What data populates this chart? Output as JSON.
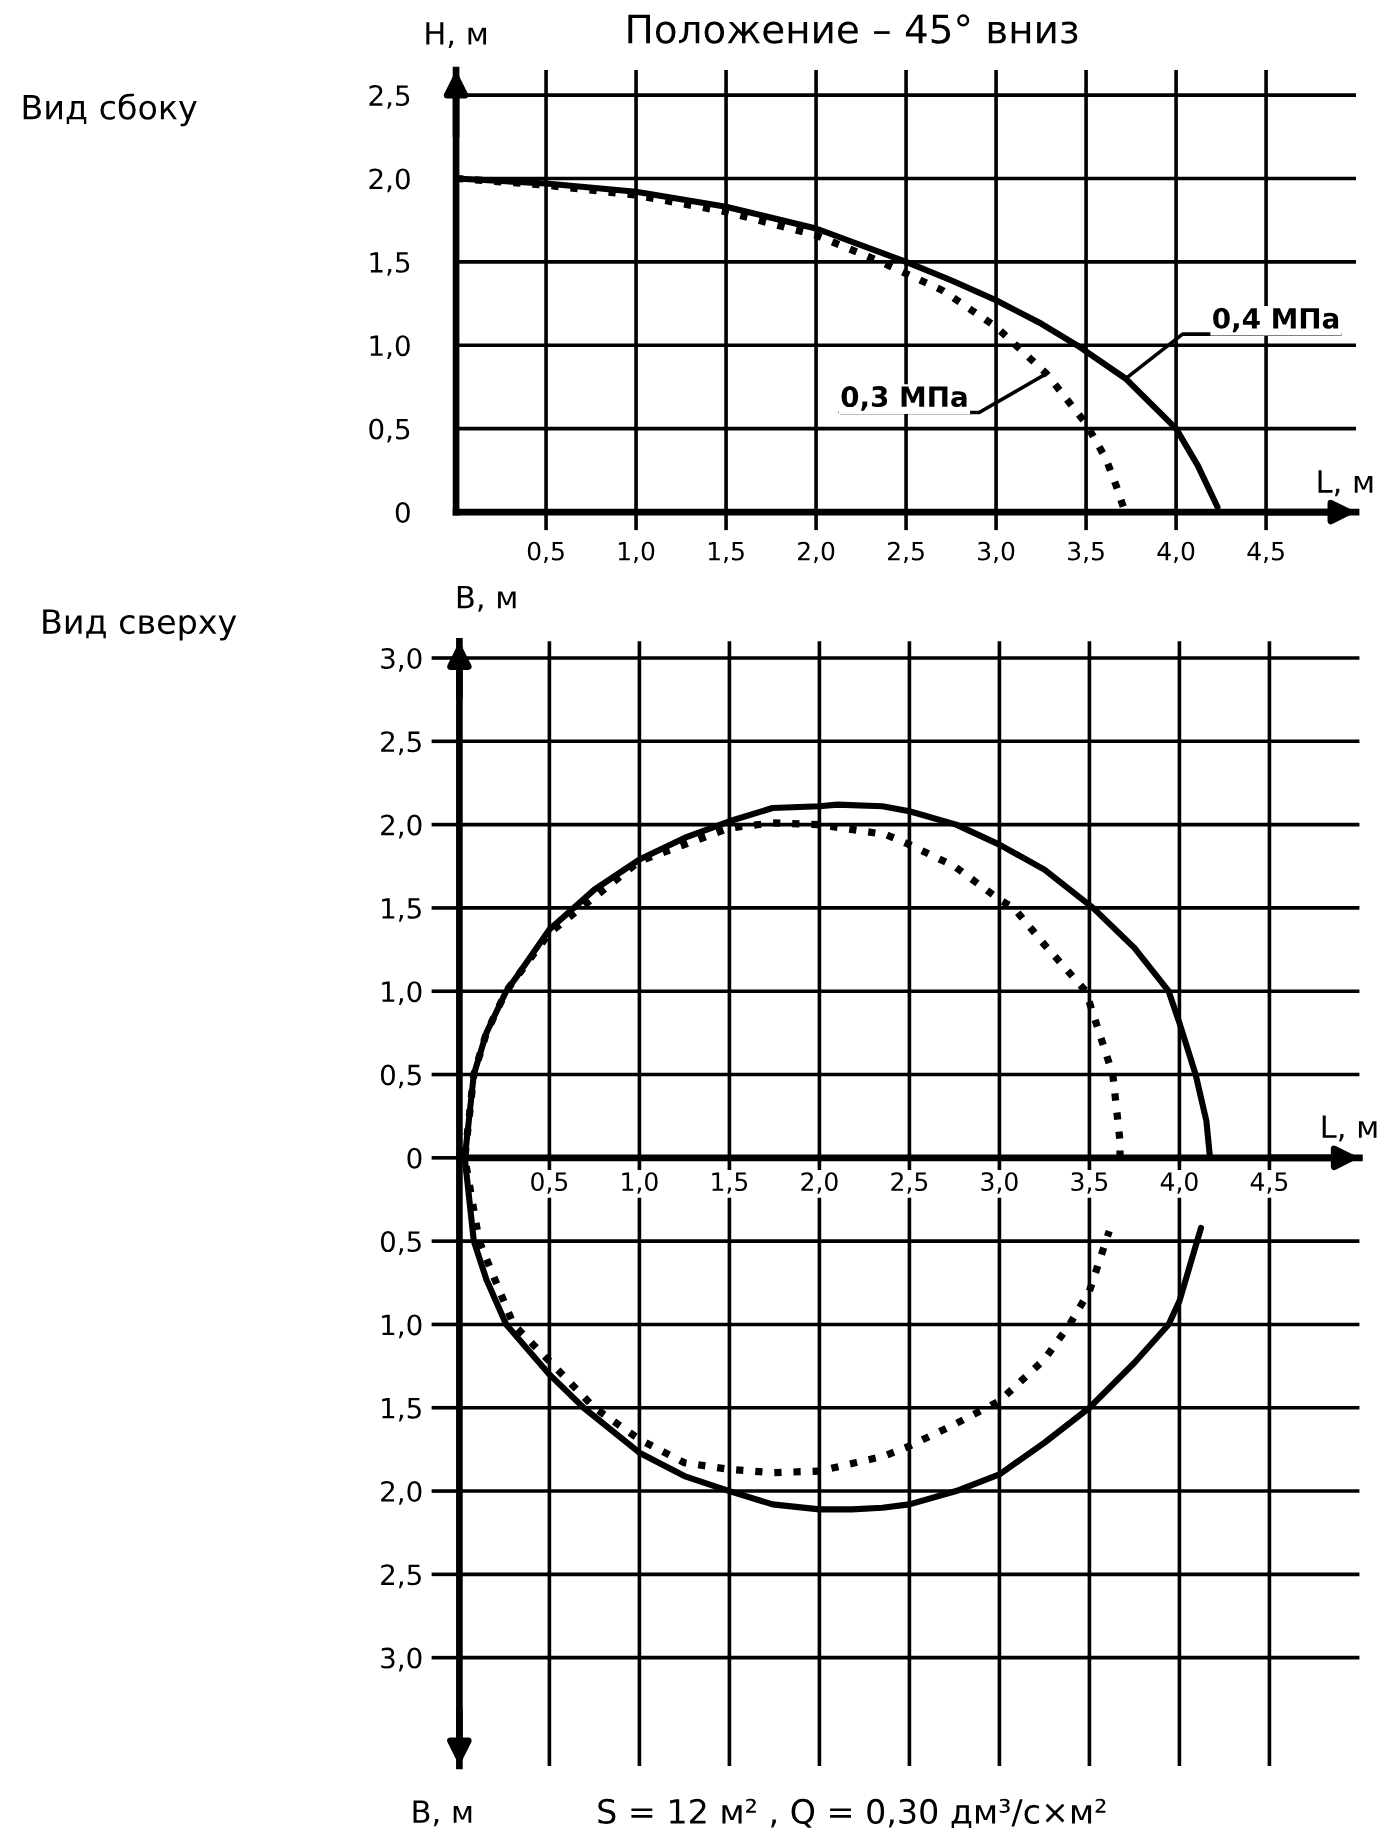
{
  "chart_data": [
    {
      "type": "line",
      "title": "Положение – 45° вниз",
      "subtitle": "Вид сбоку",
      "xlabel": "L, м",
      "ylabel": "H, м",
      "xlim": [
        0,
        5.0
      ],
      "ylim": [
        0,
        2.65
      ],
      "xticks": [
        {
          "value": 0.5,
          "label": "0,5"
        },
        {
          "value": 1.0,
          "label": "1,0"
        },
        {
          "value": 1.5,
          "label": "1,5"
        },
        {
          "value": 2.0,
          "label": "2,0"
        },
        {
          "value": 2.5,
          "label": "2,5"
        },
        {
          "value": 3.0,
          "label": "3,0"
        },
        {
          "value": 3.5,
          "label": "3,5"
        },
        {
          "value": 4.0,
          "label": "4,0"
        },
        {
          "value": 4.5,
          "label": "4,5"
        }
      ],
      "yticks": [
        0,
        {
          "value": 0.5,
          "label": "0,5"
        },
        {
          "value": 1.0,
          "label": "1,0"
        },
        {
          "value": 1.5,
          "label": "1,5"
        },
        {
          "value": 2.0,
          "label": "2,0"
        },
        {
          "value": 2.5,
          "label": "2,5"
        }
      ],
      "grid": true,
      "series": [
        {
          "name": "0,4 МПа",
          "color": "#000000",
          "line_style": "solid",
          "x": [
            0,
            0.5,
            1.0,
            1.5,
            2.0,
            2.5,
            2.75,
            3.0,
            3.25,
            3.45,
            3.72,
            4.0,
            4.12,
            4.23
          ],
          "values": [
            2.0,
            1.97,
            1.92,
            1.83,
            1.7,
            1.5,
            1.39,
            1.27,
            1.13,
            1.0,
            0.8,
            0.5,
            0.28,
            0.03
          ]
        },
        {
          "name": "0,3 МПа",
          "color": "#000000",
          "line_style": "dotted",
          "x": [
            0,
            0.5,
            1.0,
            1.5,
            2.0,
            2.36,
            2.7,
            3.0,
            3.28,
            3.5,
            3.61,
            3.67,
            3.71
          ],
          "values": [
            2.0,
            1.96,
            1.9,
            1.8,
            1.66,
            1.5,
            1.33,
            1.11,
            0.83,
            0.53,
            0.32,
            0.15,
            0.02
          ]
        }
      ]
    },
    {
      "type": "line",
      "title": "Вид сверху",
      "xlabel": "L, м",
      "ylabel": "B, м",
      "annotations": [
        "B, м",
        "S = 12 м² , Q = 0,30 дм³/с×м²"
      ],
      "xlim": [
        0,
        5.0
      ],
      "ylim": [
        -3.65,
        3.1
      ],
      "xticks": [
        {
          "value": 0.5,
          "label": "0,5"
        },
        {
          "value": 1.0,
          "label": "1,0"
        },
        {
          "value": 1.5,
          "label": "1,5"
        },
        {
          "value": 2.0,
          "label": "2,0"
        },
        {
          "value": 2.5,
          "label": "2,5"
        },
        {
          "value": 3.0,
          "label": "3,0"
        },
        {
          "value": 3.5,
          "label": "3,5"
        },
        {
          "value": 4.0,
          "label": "4,0"
        },
        {
          "value": 4.5,
          "label": "4,5"
        }
      ],
      "yticks": [
        {
          "value": -3.0,
          "label": "3,0"
        },
        {
          "value": -2.5,
          "label": "2,5"
        },
        {
          "value": -2.0,
          "label": "2,0"
        },
        {
          "value": -1.5,
          "label": "1,5"
        },
        {
          "value": -1.0,
          "label": "1,0"
        },
        {
          "value": -0.5,
          "label": "0,5"
        },
        0,
        {
          "value": 0.5,
          "label": "0,5"
        },
        {
          "value": 1.0,
          "label": "1,0"
        },
        {
          "value": 1.5,
          "label": "1,5"
        },
        {
          "value": 2.0,
          "label": "2,0"
        },
        {
          "value": 2.5,
          "label": "2,5"
        },
        {
          "value": 3.0,
          "label": "3,0"
        }
      ],
      "grid": true,
      "series": [
        {
          "color": "#000000",
          "line_style": "solid",
          "x": [
            4.17,
            4.15,
            4.09,
            4.0,
            3.94,
            3.75,
            3.52,
            3.25,
            3.0,
            2.76,
            2.5,
            2.35,
            2.1,
            2.0,
            1.74,
            1.5,
            1.25,
            1.0,
            0.75,
            0.5,
            0.32,
            0.26,
            0.15,
            0.08,
            0.03,
            0.08,
            0.15,
            0.26,
            0.5,
            0.69,
            1.0,
            1.25,
            1.5,
            1.74,
            2.0,
            2.18,
            2.35,
            2.5,
            2.76,
            3.0,
            3.25,
            3.5,
            3.75,
            3.94,
            4.0,
            4.12
          ],
          "values": [
            0,
            0.22,
            0.5,
            0.81,
            1.0,
            1.26,
            1.5,
            1.73,
            1.88,
            2.0,
            2.08,
            2.11,
            2.12,
            2.11,
            2.1,
            2.02,
            1.92,
            1.79,
            1.61,
            1.37,
            1.09,
            1.0,
            0.75,
            0.5,
            0,
            -0.5,
            -0.73,
            -1.0,
            -1.3,
            -1.5,
            -1.77,
            -1.91,
            -2.0,
            -2.08,
            -2.11,
            -2.11,
            -2.1,
            -2.08,
            -2.0,
            -1.9,
            -1.71,
            -1.5,
            -1.23,
            -1.0,
            -0.86,
            -0.42
          ]
        },
        {
          "color": "#000000",
          "line_style": "dotted",
          "x": [
            3.67,
            3.67,
            3.63,
            3.48,
            3.25,
            3.08,
            3.0,
            2.75,
            2.5,
            2.37,
            2.0,
            1.74,
            1.5,
            1.0,
            0.5,
            0.26,
            0.15,
            0.08,
            0.03,
            0.11,
            0.3,
            0.5,
            0.75,
            1.0,
            1.25,
            1.5,
            1.74,
            2.0,
            2.36,
            2.5,
            2.75,
            3.0,
            3.25,
            3.39,
            3.5,
            3.61
          ],
          "values": [
            0,
            0.1,
            0.5,
            1.0,
            1.28,
            1.5,
            1.55,
            1.75,
            1.88,
            1.94,
            2.0,
            2.01,
            1.98,
            1.78,
            1.35,
            1.0,
            0.75,
            0.5,
            0,
            -0.5,
            -1.0,
            -1.22,
            -1.5,
            -1.69,
            -1.83,
            -1.87,
            -1.89,
            -1.88,
            -1.79,
            -1.73,
            -1.6,
            -1.46,
            -1.21,
            -1.0,
            -0.8,
            -0.44
          ]
        }
      ]
    }
  ]
}
